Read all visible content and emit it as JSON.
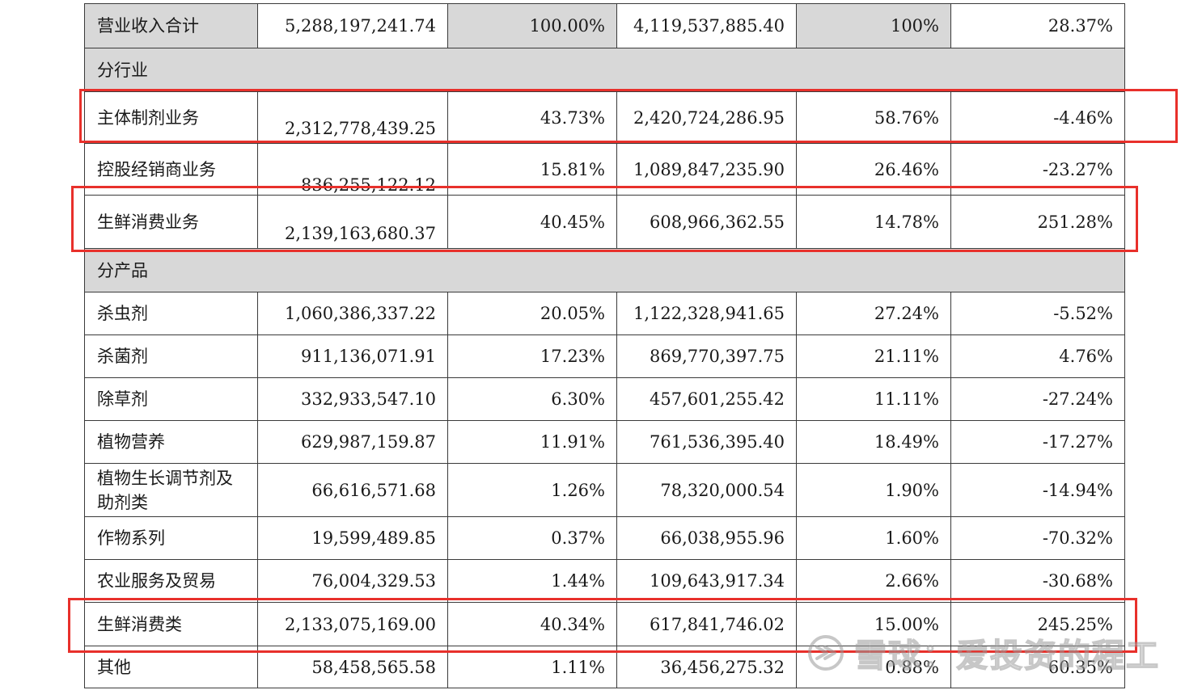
{
  "total_row": {
    "label": "营业收入合计",
    "values": [
      "5,288,197,241.74",
      "100.00%",
      "4,119,537,885.40",
      "100%",
      "28.37%"
    ]
  },
  "section_industry": {
    "label": "分行业",
    "rows": [
      {
        "label": "主体制剂业务",
        "values": [
          "2,312,778,439.25",
          "43.73%",
          "2,420,724,286.95",
          "58.76%",
          "-4.46%"
        ]
      },
      {
        "label": "控股经销商业务",
        "values": [
          "836,255,122.12",
          "15.81%",
          "1,089,847,235.90",
          "26.46%",
          "-23.27%"
        ]
      },
      {
        "label": "生鲜消费业务",
        "values": [
          "2,139,163,680.37",
          "40.45%",
          "608,966,362.55",
          "14.78%",
          "251.28%"
        ]
      }
    ]
  },
  "section_product": {
    "label": "分产品",
    "rows": [
      {
        "label": "杀虫剂",
        "values": [
          "1,060,386,337.22",
          "20.05%",
          "1,122,328,941.65",
          "27.24%",
          "-5.52%"
        ]
      },
      {
        "label": "杀菌剂",
        "values": [
          "911,136,071.91",
          "17.23%",
          "869,770,397.75",
          "21.11%",
          "4.76%"
        ]
      },
      {
        "label": "除草剂",
        "values": [
          "332,933,547.10",
          "6.30%",
          "457,601,255.42",
          "11.11%",
          "-27.24%"
        ]
      },
      {
        "label": "植物营养",
        "values": [
          "629,987,159.87",
          "11.91%",
          "761,536,395.40",
          "18.49%",
          "-17.27%"
        ]
      },
      {
        "label": "植物生长调节剂及助剂类",
        "values": [
          "66,616,571.68",
          "1.26%",
          "78,320,000.54",
          "1.90%",
          "-14.94%"
        ]
      },
      {
        "label": "作物系列",
        "values": [
          "19,599,489.85",
          "0.37%",
          "66,038,955.96",
          "1.60%",
          "-70.32%"
        ]
      },
      {
        "label": "农业服务及贸易",
        "values": [
          "76,004,329.53",
          "1.44%",
          "109,643,917.34",
          "2.66%",
          "-30.68%"
        ]
      },
      {
        "label": "生鲜消费类",
        "values": [
          "2,133,075,169.00",
          "40.34%",
          "617,841,746.02",
          "15.00%",
          "245.25%"
        ]
      },
      {
        "label": "其他",
        "values": [
          "58,458,565.58",
          "1.11%",
          "36,456,275.32",
          "0.88%",
          "60.35%"
        ]
      }
    ]
  },
  "watermark": {
    "text": "雪球：爱投资的程工",
    "icon": "snowball-logo-icon"
  },
  "colors": {
    "highlight": "#e8302b",
    "shaded_cell": "#d8d8d8",
    "grid": "#3a3a3a"
  }
}
